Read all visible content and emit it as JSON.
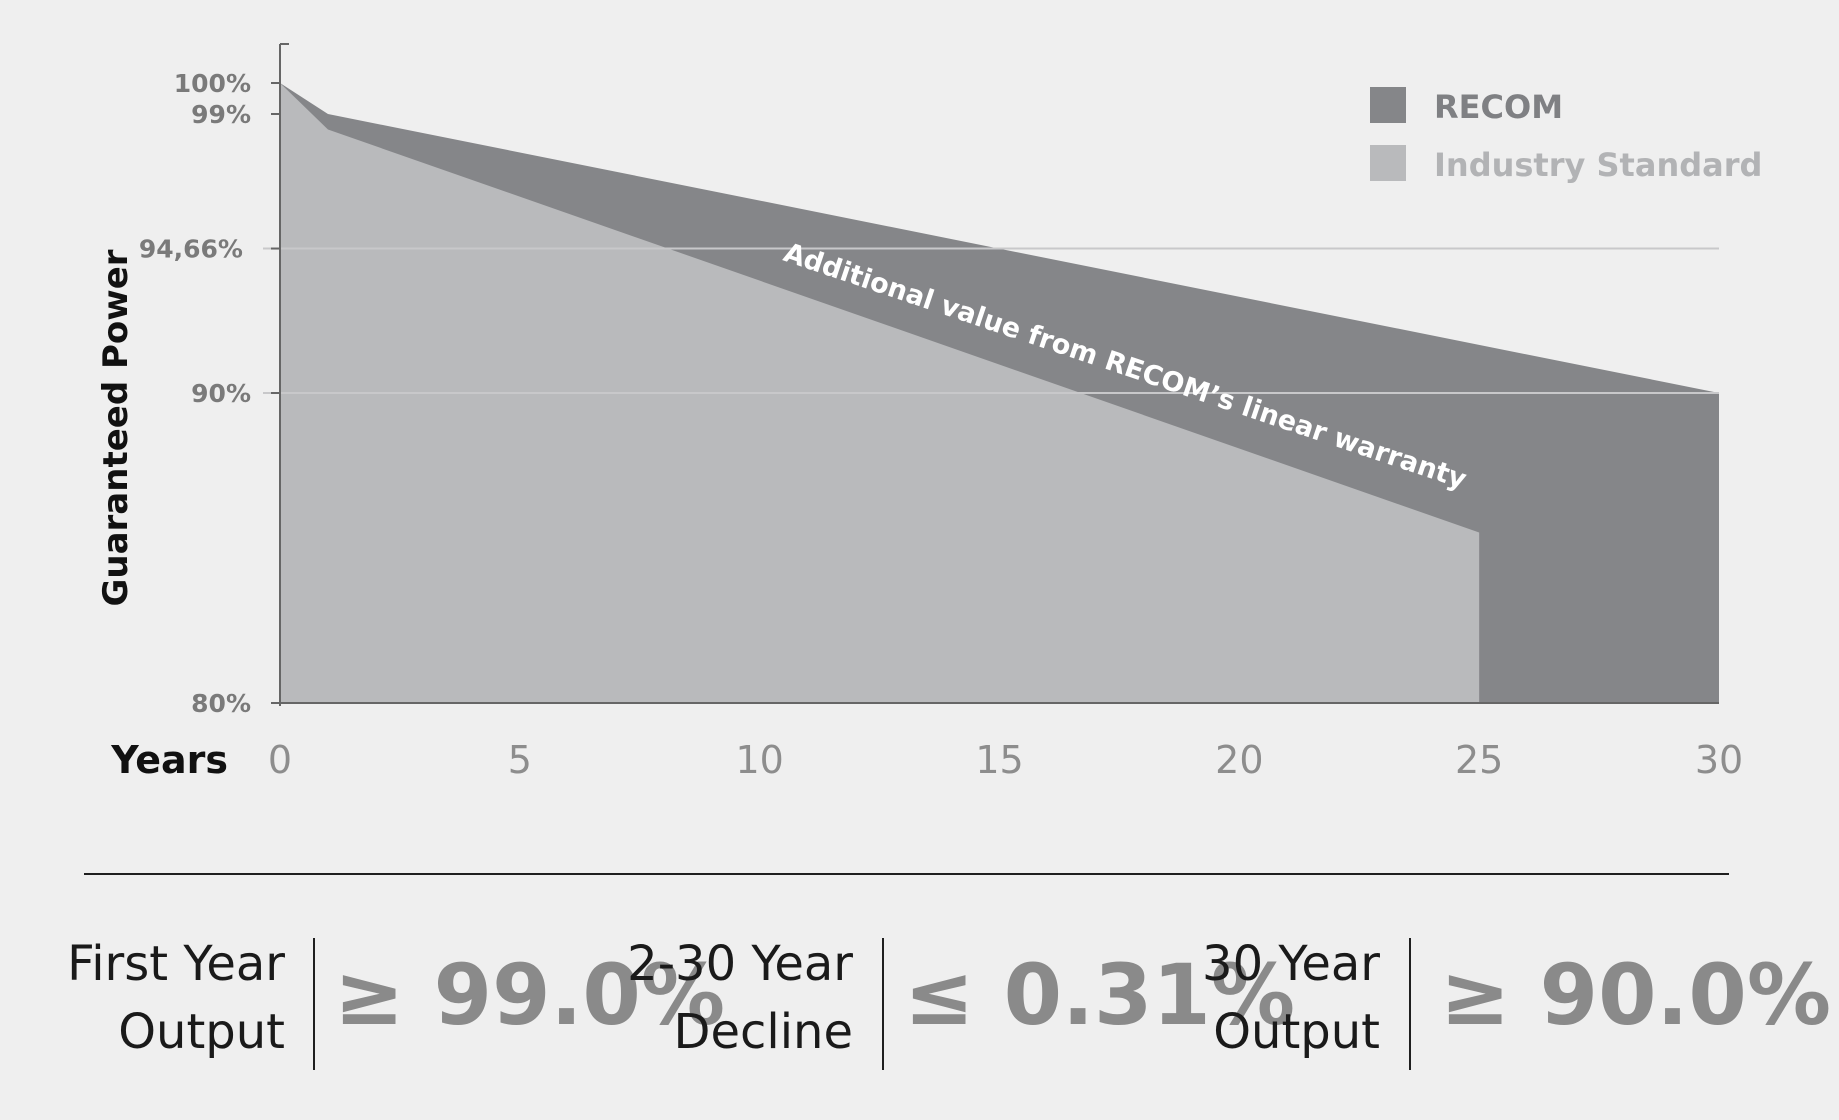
{
  "chart_data": {
    "type": "area",
    "ylabel": "Guaranteed Power",
    "xlabel": "Years",
    "x_ticks": [
      "0",
      "5",
      "10",
      "15",
      "20",
      "25",
      "30"
    ],
    "y_ticks": [
      "100%",
      "99%",
      "94,66%",
      "90%",
      "80%"
    ],
    "y_tick_values": [
      100,
      99,
      94.66,
      90,
      80
    ],
    "xlim": [
      0,
      30
    ],
    "ylim": [
      80,
      100
    ],
    "grid": "horizontal lines at 94.66% and 90%",
    "legend_position": "top-right",
    "series": [
      {
        "name": "RECOM",
        "color": "#858689",
        "x": [
          0,
          1,
          30
        ],
        "y": [
          100,
          99,
          90
        ]
      },
      {
        "name": "Industry Standard",
        "color": "#b9babc",
        "x": [
          0,
          1,
          25
        ],
        "y": [
          100,
          98.5,
          85.5
        ]
      }
    ],
    "annotation": "Additional value from RECOM’s linear warranty"
  },
  "summary": [
    {
      "label_line1": "First Year",
      "label_line2": "Output",
      "value": "≥ 99.0%"
    },
    {
      "label_line1": "2-30 Year",
      "label_line2": "Decline",
      "value": "≤ 0.31%"
    },
    {
      "label_line1": "30 Year",
      "label_line2": "Output",
      "value": "≥ 90.0%"
    }
  ]
}
